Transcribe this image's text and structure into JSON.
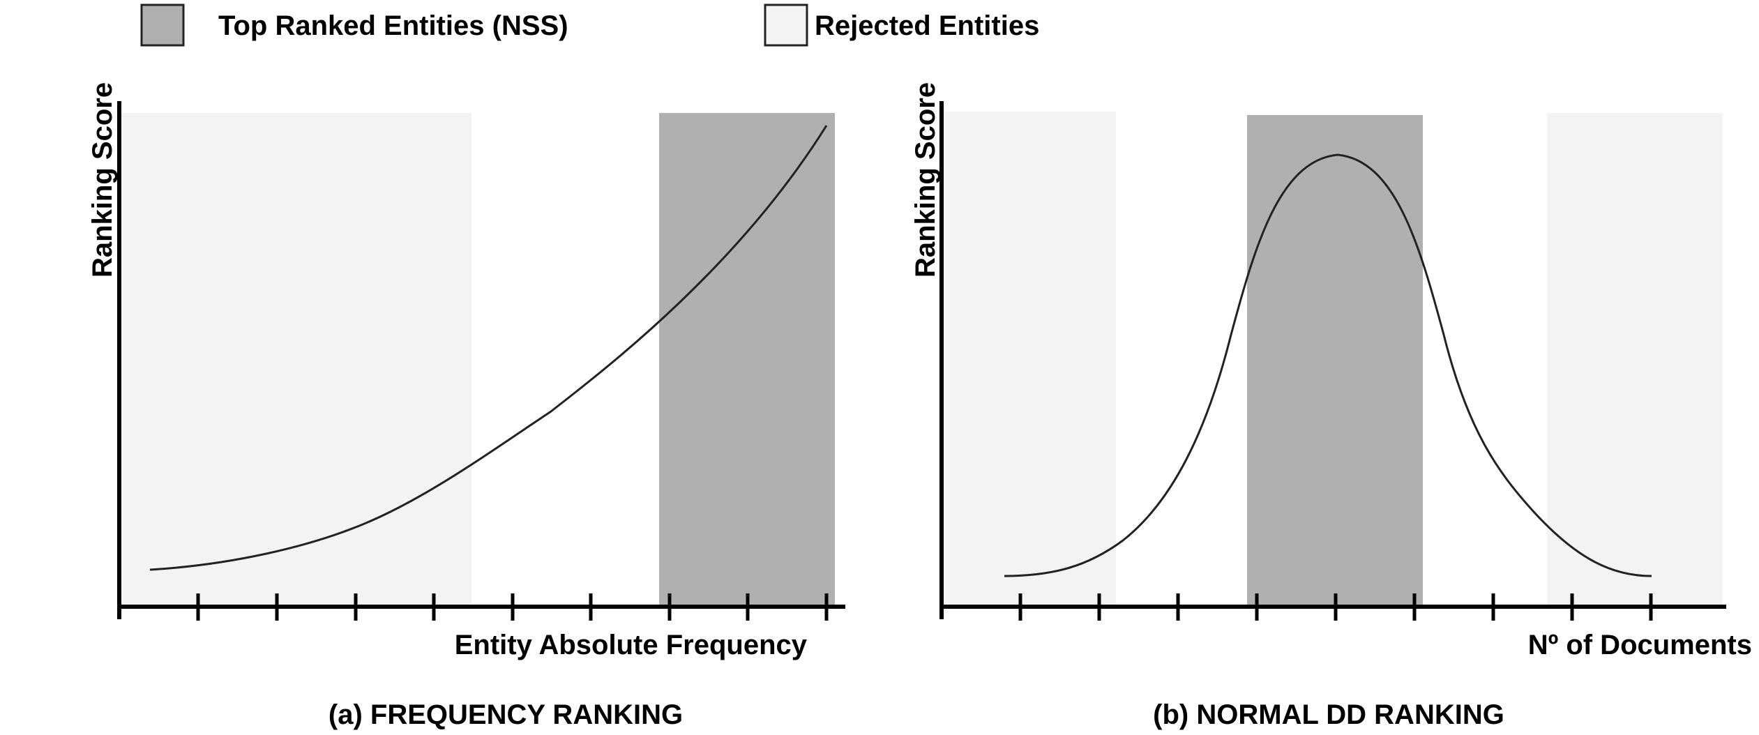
{
  "legend": {
    "items": [
      {
        "label": "Top Ranked Entities (NSS)",
        "color": "#b0b0b0"
      },
      {
        "label": "Rejected Entities",
        "color": "#f3f3f3"
      }
    ]
  },
  "panels": [
    {
      "id": "a",
      "ylabel": "Ranking Score",
      "xlabel": "Entity Absolute Frequency",
      "caption": "(a) FREQUENCY RANKING"
    },
    {
      "id": "b",
      "ylabel": "Ranking Score",
      "xlabel": "Nº of Documents",
      "caption": "(b) NORMAL DD RANKING"
    }
  ],
  "colors": {
    "top_ranked": "#b0b0b0",
    "rejected": "#f3f3f3",
    "axis": "#000000",
    "curve": "#222222"
  }
}
